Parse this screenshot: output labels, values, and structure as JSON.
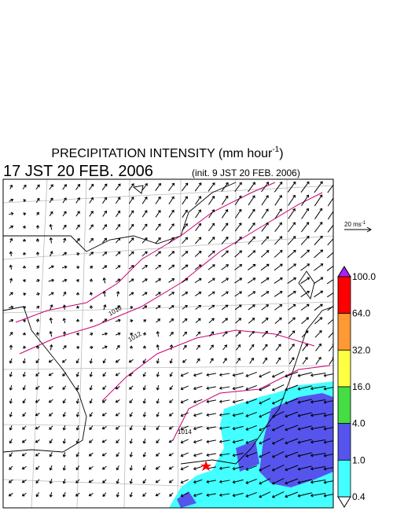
{
  "header": {
    "title": "PRECIPITATION INTENSITY (mm hour",
    "title_superscript": "-1",
    "title_end": ")",
    "valid_time": "17 JST 20 FEB. 2006",
    "init_time": "(init. 9 JST 20 FEB. 2006)"
  },
  "scale_arrow": {
    "label": "20 ms",
    "superscript": "-1"
  },
  "colorbar": {
    "labels": [
      "100.0",
      "64.0",
      "32.0",
      "16.0",
      "4.0",
      "1.0",
      "0.4"
    ],
    "colors": [
      "#ff0000",
      "#ff9933",
      "#ffff44",
      "#44dd44",
      "#5555ee",
      "#44ffff"
    ],
    "top_color": "#aa22ee"
  },
  "isobars": {
    "labels": [
      "1010",
      "1012",
      "1014"
    ]
  }
}
